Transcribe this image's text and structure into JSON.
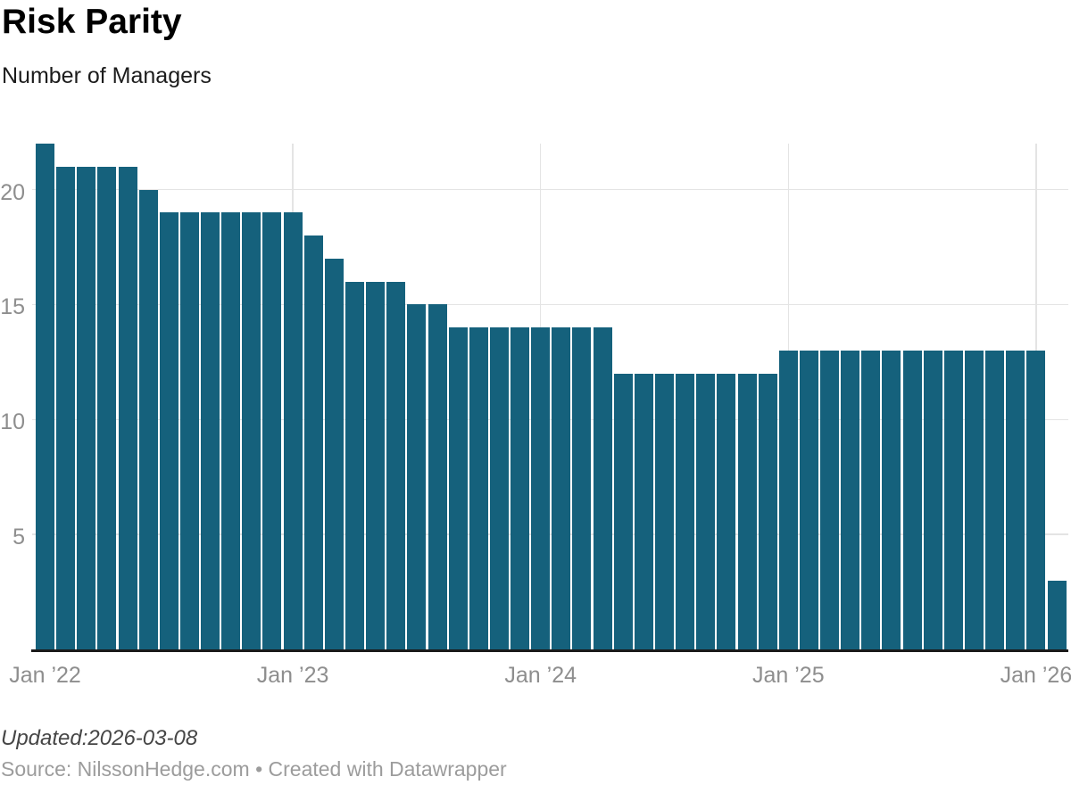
{
  "header": {
    "title": "Risk Parity",
    "subtitle": "Number of Managers"
  },
  "footer": {
    "updated": "Updated:2026-03-08",
    "source": "Source: NilssonHedge.com • Created with Datawrapper"
  },
  "colors": {
    "bar": "#15617c",
    "grid": "#e4e4e4",
    "axis_line": "#1a1a1a",
    "tick_label": "#8e8e8e",
    "title": "#000000",
    "subtitle": "#1c1c1c",
    "updated": "#464646",
    "source": "#9c9c9c"
  },
  "chart_data": {
    "type": "bar",
    "title": "Risk Parity",
    "ylabel": "Number of Managers",
    "xlabel": "",
    "ylim": [
      0,
      22
    ],
    "yticks": [
      5,
      10,
      15,
      20
    ],
    "grid": true,
    "legend": false,
    "x": [
      "2022-01",
      "2022-02",
      "2022-03",
      "2022-04",
      "2022-05",
      "2022-06",
      "2022-07",
      "2022-08",
      "2022-09",
      "2022-10",
      "2022-11",
      "2022-12",
      "2023-01",
      "2023-02",
      "2023-03",
      "2023-04",
      "2023-05",
      "2023-06",
      "2023-07",
      "2023-08",
      "2023-09",
      "2023-10",
      "2023-11",
      "2023-12",
      "2024-01",
      "2024-02",
      "2024-03",
      "2024-04",
      "2024-05",
      "2024-06",
      "2024-07",
      "2024-08",
      "2024-09",
      "2024-10",
      "2024-11",
      "2024-12",
      "2025-01",
      "2025-02",
      "2025-03",
      "2025-04",
      "2025-05",
      "2025-06",
      "2025-07",
      "2025-08",
      "2025-09",
      "2025-10",
      "2025-11",
      "2025-12",
      "2026-01",
      "2026-02"
    ],
    "values": [
      22,
      21,
      21,
      21,
      21,
      20,
      19,
      19,
      19,
      19,
      19,
      19,
      19,
      18,
      17,
      16,
      16,
      16,
      15,
      15,
      14,
      14,
      14,
      14,
      14,
      14,
      14,
      14,
      12,
      12,
      12,
      12,
      12,
      12,
      12,
      12,
      13,
      13,
      13,
      13,
      13,
      13,
      13,
      13,
      13,
      13,
      13,
      13,
      13,
      3
    ],
    "xticks": [
      {
        "month": "2022-01",
        "label": "Jan ’22"
      },
      {
        "month": "2023-01",
        "label": "Jan ’23"
      },
      {
        "month": "2024-01",
        "label": "Jan ’24"
      },
      {
        "month": "2025-01",
        "label": "Jan ’25"
      },
      {
        "month": "2026-01",
        "label": "Jan ’26"
      }
    ]
  }
}
